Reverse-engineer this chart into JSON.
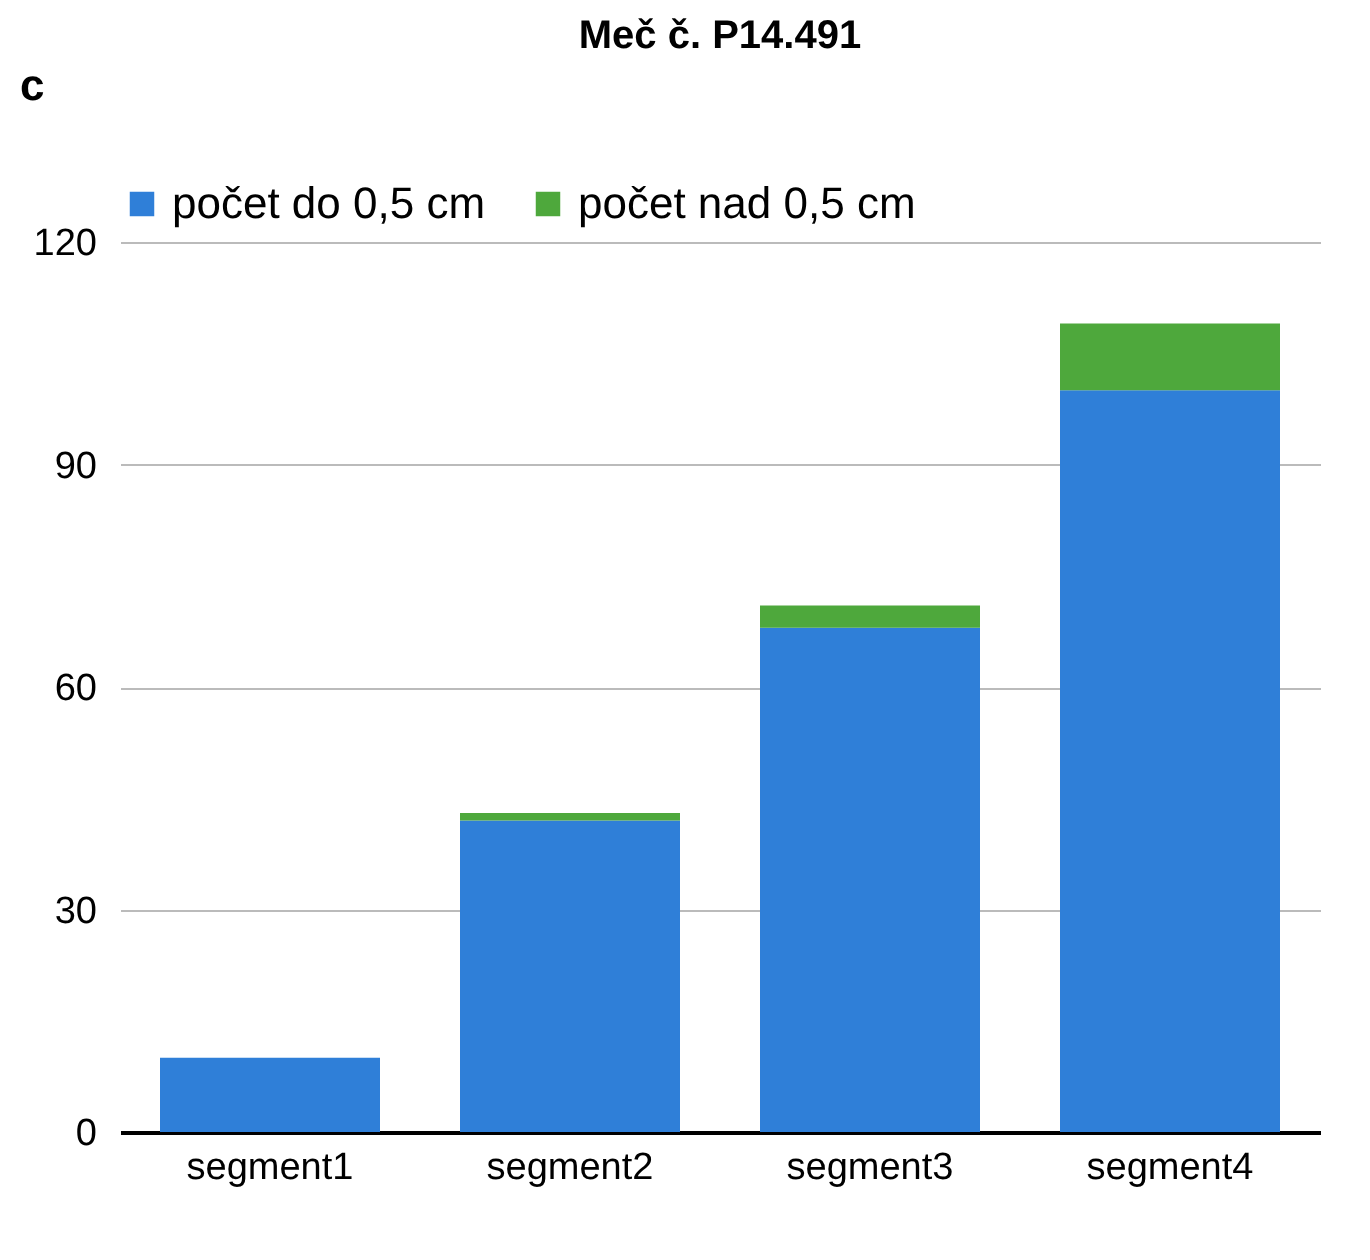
{
  "chart_data": {
    "type": "bar",
    "title": "Meč č. P14.491",
    "annotations": [
      "c"
    ],
    "categories": [
      "segment1",
      "segment2",
      "segment3",
      "segment4"
    ],
    "series": [
      {
        "name": "počet do 0,5 cm",
        "color": "#2f7fd8",
        "values": [
          10,
          42,
          68,
          100
        ]
      },
      {
        "name": "počet nad 0,5 cm",
        "color": "#4ea83c",
        "values": [
          0,
          1,
          3,
          9
        ]
      }
    ],
    "stacked": true,
    "ylim": [
      0,
      120
    ],
    "yticks": [
      0,
      30,
      60,
      90,
      120
    ],
    "grid": "y",
    "legend": "top"
  }
}
